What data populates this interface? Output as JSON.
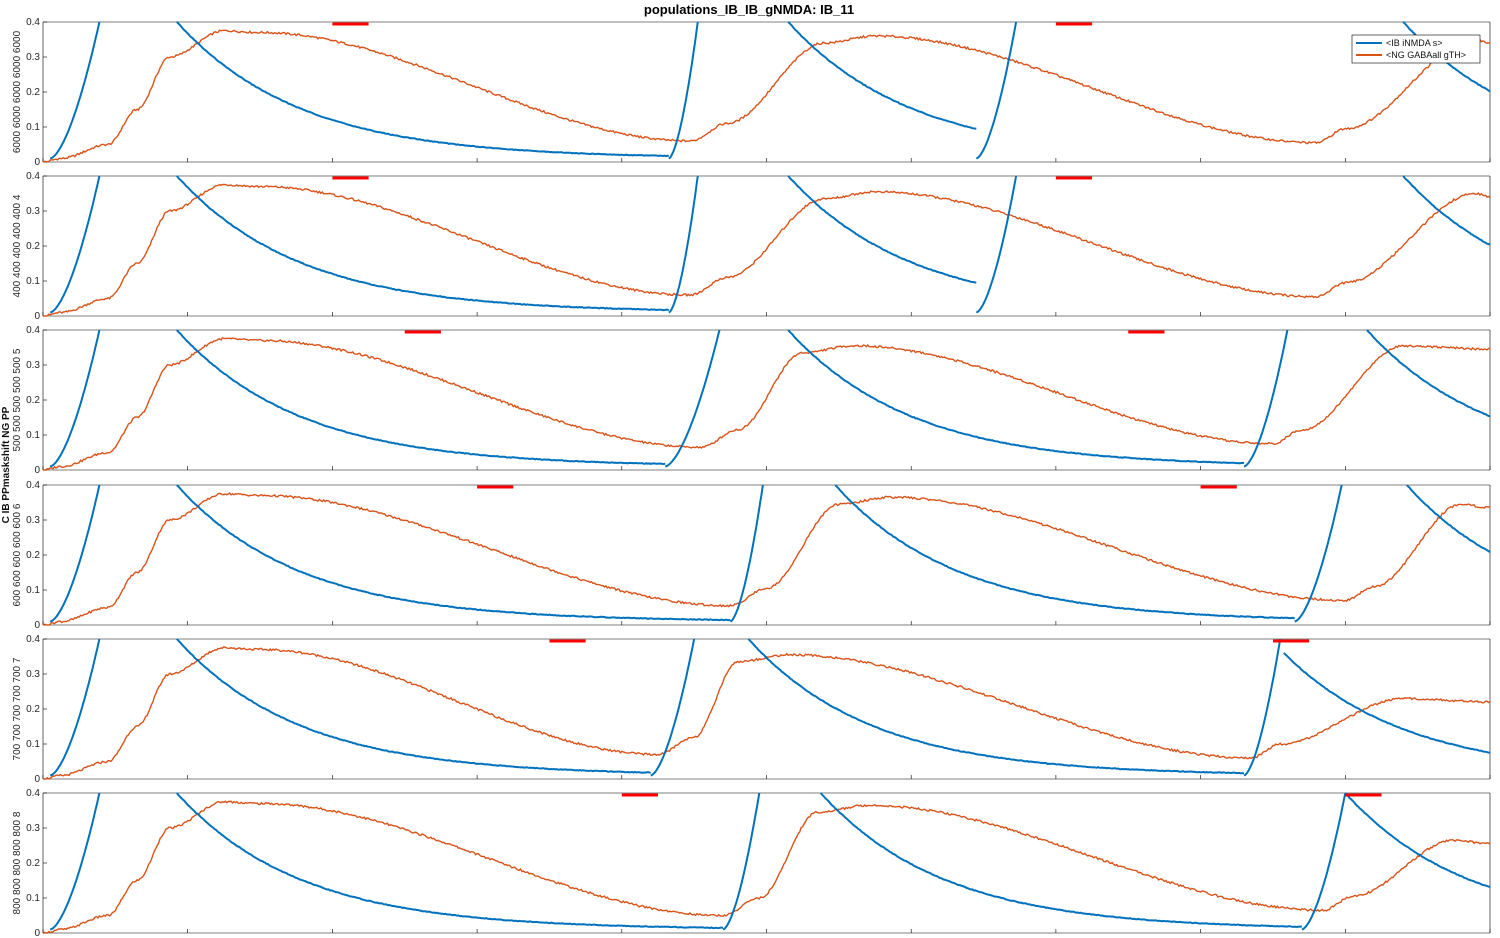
{
  "chart_data": {
    "type": "line",
    "title": "populations_IB_IB_gNMDA: IB_11",
    "legend": {
      "position": "top-right",
      "entries": [
        {
          "label": "<IB iNMDA s>",
          "color": "#0072BD"
        },
        {
          "label": "<NG GABAall gTH>",
          "color": "#D95319"
        }
      ]
    },
    "xlim": [
      0,
      2000
    ],
    "x_ticks": [
      "0",
      "200",
      "400",
      "600",
      "800",
      "1000",
      "1200",
      "1400",
      "1600",
      "1800",
      "2000"
    ],
    "ylim": [
      0,
      0.4
    ],
    "y_ticks": [
      "0",
      "0.1",
      "0.2",
      "0.3",
      "0.4"
    ],
    "ylabel_common": "C IB PPmaskshift NG PP",
    "panels": [
      {
        "ylabel": "6000 6000 6000 6000 6000",
        "red_bars": [
          [
            400,
            450
          ],
          [
            1400,
            1450
          ]
        ],
        "blue": {
          "ramps": [
            [
              10,
              78
            ],
            [
              865,
              905
            ],
            [
              1290,
              1345
            ]
          ],
          "peaks": [
            185,
            1030,
            1880
          ],
          "minimum": 0.01
        },
        "orange": {
          "rise_start": 0,
          "plateau": [
            [
              250,
              0.375
            ],
            [
              1150,
              0.36
            ],
            [
              1980,
              0.35
            ]
          ],
          "troughs": [
            [
              895,
              0.06
            ],
            [
              1760,
              0.055
            ]
          ]
        }
      },
      {
        "ylabel": "400 400 400 400 400 4",
        "red_bars": [
          [
            400,
            450
          ],
          [
            1400,
            1450
          ]
        ],
        "blue": {
          "ramps": [
            [
              10,
              78
            ],
            [
              865,
              905
            ],
            [
              1290,
              1345
            ]
          ],
          "peaks": [
            185,
            1030,
            1880
          ],
          "minimum": 0.01
        },
        "orange": {
          "plateau": [
            [
              250,
              0.375
            ],
            [
              1150,
              0.355
            ],
            [
              1980,
              0.35
            ]
          ],
          "troughs": [
            [
              895,
              0.06
            ],
            [
              1760,
              0.055
            ]
          ]
        }
      },
      {
        "ylabel": "500 500 500 500 500 5",
        "red_bars": [
          [
            500,
            550
          ],
          [
            1500,
            1550
          ]
        ],
        "blue": {
          "ramps": [
            [
              10,
              78
            ],
            [
              860,
              935
            ],
            [
              1660,
              1720
            ]
          ],
          "peaks": [
            185,
            1030,
            1830
          ],
          "minimum": 0.01
        },
        "orange": {
          "plateau": [
            [
              250,
              0.375
            ],
            [
              1120,
              0.355
            ],
            [
              1880,
              0.355
            ]
          ],
          "troughs": [
            [
              910,
              0.065
            ],
            [
              1700,
              0.075
            ]
          ]
        }
      },
      {
        "ylabel": "600 600 600 600 600 6",
        "red_bars": [
          [
            600,
            650
          ],
          [
            1600,
            1650
          ]
        ],
        "blue": {
          "ramps": [
            [
              10,
              78
            ],
            [
              950,
              995
            ],
            [
              1730,
              1795
            ]
          ],
          "peaks": [
            185,
            1095,
            1885
          ],
          "minimum": 0.01
        },
        "orange": {
          "plateau": [
            [
              250,
              0.375
            ],
            [
              1170,
              0.365
            ],
            [
              1960,
              0.345
            ]
          ],
          "troughs": [
            [
              950,
              0.055
            ],
            [
              1800,
              0.07
            ]
          ]
        }
      },
      {
        "ylabel": "700 700 700 700 700 7",
        "red_bars": [
          [
            700,
            750
          ],
          [
            1700,
            1750
          ]
        ],
        "blue": {
          "ramps": [
            [
              10,
              78
            ],
            [
              840,
              900
            ],
            [
              1660,
              1710
            ]
          ],
          "peaks": [
            185,
            975,
            1715
          ],
          "minimum": 0.01
        },
        "orange": {
          "plateau": [
            [
              250,
              0.375
            ],
            [
              1030,
              0.355
            ],
            [
              1880,
              0.23
            ]
          ],
          "troughs": [
            [
              850,
              0.07
            ],
            [
              1670,
              0.06
            ]
          ]
        }
      },
      {
        "ylabel": "800 800 800 800 800 8",
        "red_bars": [
          [
            800,
            850
          ],
          [
            1800,
            1850
          ]
        ],
        "blue": {
          "ramps": [
            [
              10,
              78
            ],
            [
              940,
              990
            ],
            [
              1740,
              1800
            ]
          ],
          "peaks": [
            185,
            1075,
            1800
          ],
          "minimum": 0.01
        },
        "orange": {
          "plateau": [
            [
              250,
              0.375
            ],
            [
              1140,
              0.365
            ],
            [
              1950,
              0.265
            ]
          ],
          "troughs": [
            [
              940,
              0.05
            ],
            [
              1770,
              0.065
            ]
          ]
        }
      }
    ]
  }
}
